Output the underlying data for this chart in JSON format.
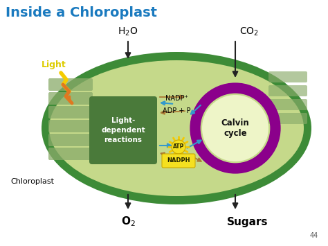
{
  "title": "Inside a Chloroplast",
  "title_color": "#1a7abf",
  "title_fontsize": 14,
  "bg_color": "#ffffff",
  "cell_outer_color": "#3d8b37",
  "cell_inner_color": "#c5d98a",
  "thylakoid_color": "#8aab6a",
  "ldr_box_color": "#4a7a3a",
  "ldr_box_text": "Light-\ndependent\nreactions",
  "calvin_circle_color": "#8b008b",
  "calvin_inner_color": "#eef5c8",
  "arrow_color": "#222222",
  "blue_arrow_color": "#3399cc",
  "brown_arrow_color": "#aa7733",
  "page_num": "44"
}
